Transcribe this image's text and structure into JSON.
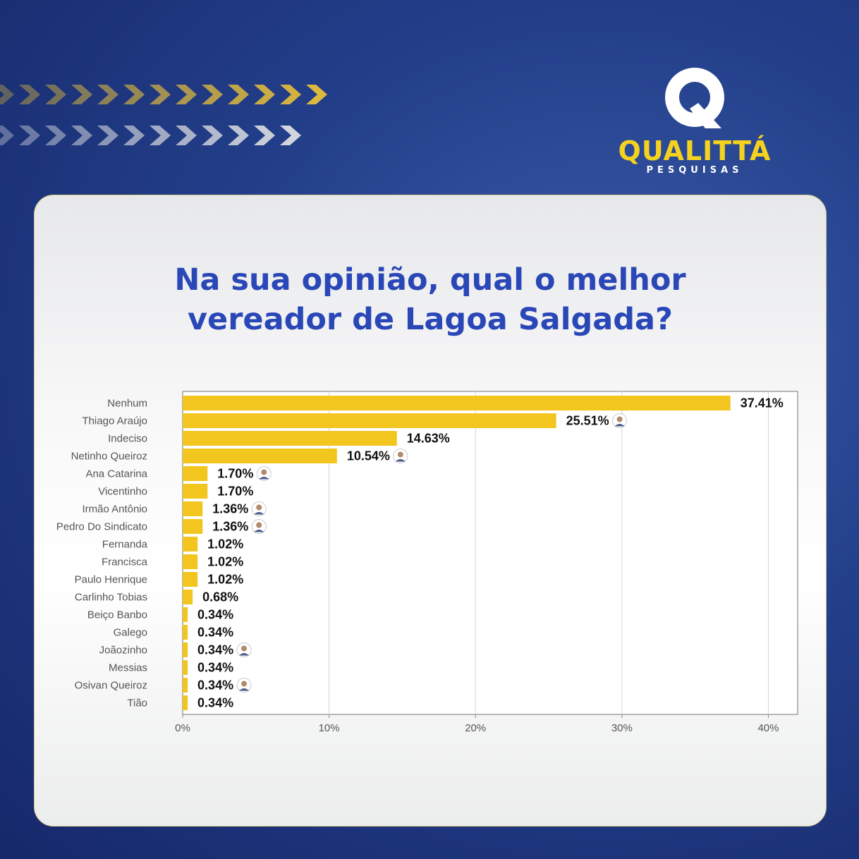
{
  "brand": {
    "name": "QUALITTÁ",
    "subtitle": "PESQUISAS"
  },
  "colors": {
    "background": "#233f8a",
    "bar": "#f2c51f",
    "question_text": "#2a47b8",
    "brand_yellow": "#f5d21e",
    "chevron_gold": "#e8bf3a",
    "chevron_white": "#e6e6e6"
  },
  "question": {
    "line1": "Na sua opinião, qual o melhor",
    "line2": "vereador de Lagoa Salgada?"
  },
  "chart_data": {
    "type": "bar",
    "orientation": "horizontal",
    "categories": [
      "Nenhum",
      "Thiago Araújo",
      "Indeciso",
      "Netinho Queiroz",
      "Ana Catarina",
      "Vicentinho",
      "Irmão Antônio",
      "Pedro Do Sindicato",
      "Fernanda",
      "Francisca",
      "Paulo Henrique",
      "Carlinho Tobias",
      "Beiço Banbo",
      "Galego",
      "Joãozinho",
      "Messias",
      "Osivan Queiroz",
      "Tião"
    ],
    "values": [
      37.41,
      25.51,
      14.63,
      10.54,
      1.7,
      1.7,
      1.36,
      1.36,
      1.02,
      1.02,
      1.02,
      0.68,
      0.34,
      0.34,
      0.34,
      0.34,
      0.34,
      0.34
    ],
    "value_labels": [
      "37.41%",
      "25.51%",
      "14.63%",
      "10.54%",
      "1.70%",
      "1.70%",
      "1.36%",
      "1.36%",
      "1.02%",
      "1.02%",
      "1.02%",
      "0.68%",
      "0.34%",
      "0.34%",
      "0.34%",
      "0.34%",
      "0.34%",
      "0.34%"
    ],
    "avatar_rows": [
      "Thiago Araújo",
      "Netinho Queiroz",
      "Ana Catarina",
      "Irmão Antônio",
      "Pedro Do Sindicato",
      "Joãozinho",
      "Osivan Queiroz"
    ],
    "xlim": [
      0,
      42
    ],
    "xticks": [
      0,
      10,
      20,
      30,
      40
    ],
    "xtick_labels": [
      "0%",
      "10%",
      "20%",
      "30%",
      "40%"
    ],
    "grid": "vertical",
    "legend": "none"
  }
}
